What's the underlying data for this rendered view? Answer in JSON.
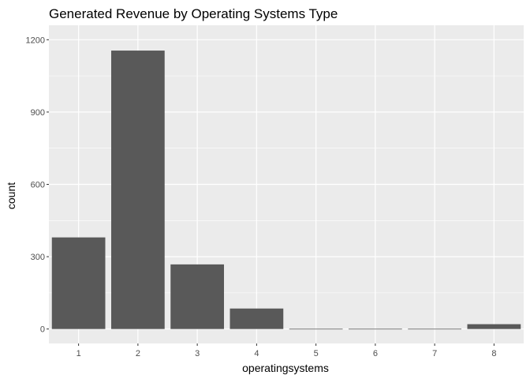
{
  "chart_data": {
    "type": "bar",
    "title": "Generated Revenue by Operating Systems Type",
    "xlabel": "operatingsystems",
    "ylabel": "count",
    "categories": [
      "1",
      "2",
      "3",
      "4",
      "5",
      "6",
      "7",
      "8"
    ],
    "values": [
      380,
      1155,
      268,
      85,
      1,
      1,
      1,
      20
    ],
    "ylim": [
      0,
      1200
    ],
    "yticks": [
      0,
      300,
      600,
      900,
      1200
    ],
    "grid": true,
    "colors": {
      "bar": "#595959",
      "panel": "#ebebeb",
      "grid": "#ffffff",
      "tick_text": "#4d4d4d",
      "tick_mark": "#333333"
    }
  }
}
